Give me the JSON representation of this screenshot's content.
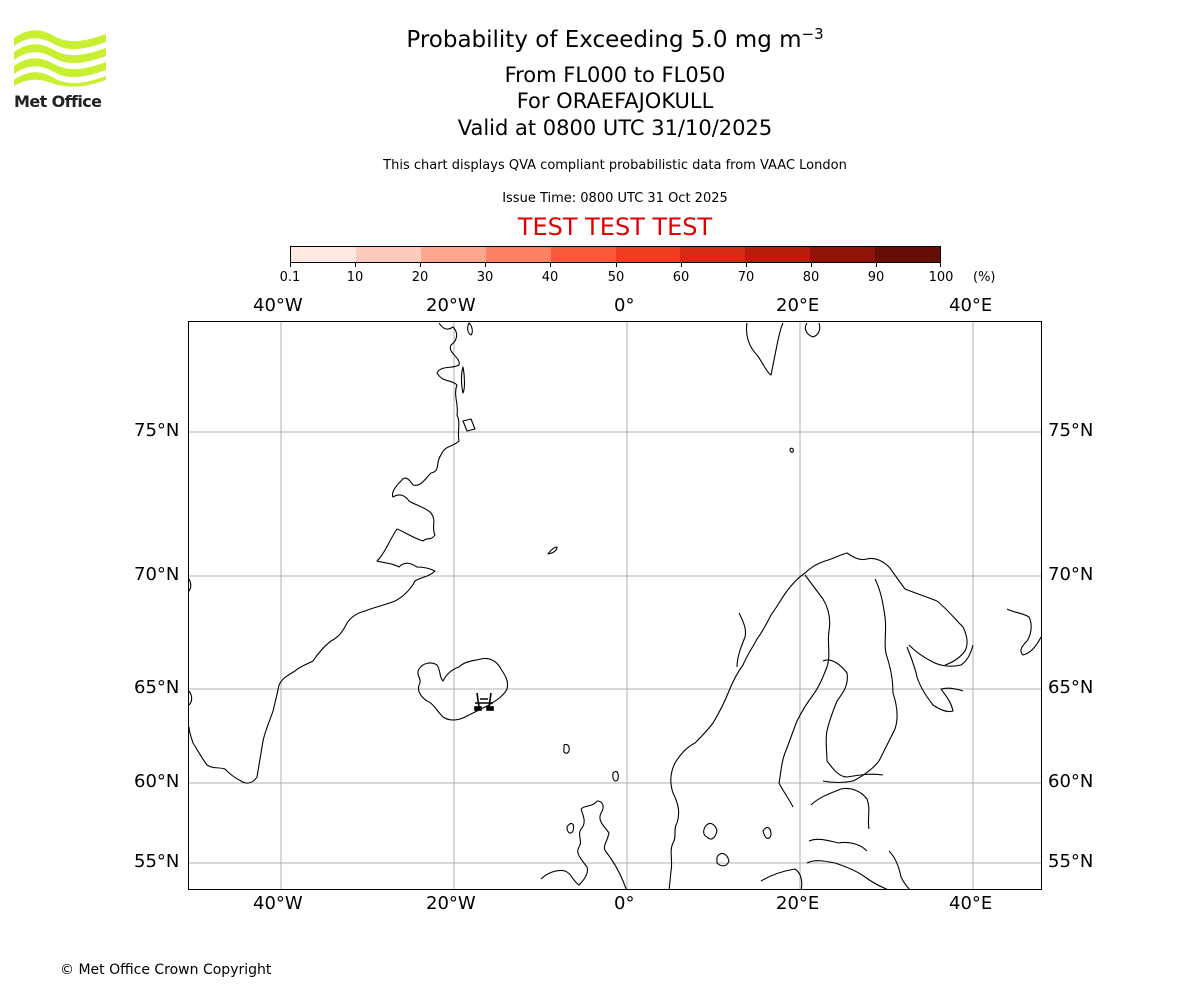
{
  "logo": {
    "text": "Met Office",
    "wave_color": "#c8f032"
  },
  "header": {
    "title_prefix": "Probability of Exceeding 5.0 mg m",
    "title_superscript": "−3",
    "level_range": "From FL000 to FL050",
    "volcano": "For ORAEFAJOKULL",
    "valid_time": "Valid at 0800 UTC 31/10/2025",
    "description": "This chart displays QVA compliant probabilistic data from VAAC London",
    "issue_time": "Issue Time: 0800 UTC 31 Oct 2025",
    "test_banner": "TEST TEST TEST",
    "test_banner_color": "#e00000"
  },
  "colorbar": {
    "unit": "(%)",
    "ticks": [
      "0.1",
      "10",
      "20",
      "30",
      "40",
      "50",
      "60",
      "70",
      "80",
      "90",
      "100"
    ],
    "colors": [
      "#fee8e1",
      "#fdcbbd",
      "#fca690",
      "#fc8165",
      "#fb5b3b",
      "#f03d22",
      "#d52b14",
      "#b81d0c",
      "#901309",
      "#650e05"
    ]
  },
  "map": {
    "lon_labels": [
      "40°W",
      "20°W",
      "0°",
      "20°E",
      "40°E"
    ],
    "lat_labels": [
      "75°N",
      "70°N",
      "65°N",
      "60°N",
      "55°N"
    ],
    "grid_color": "#b0b0b0",
    "volcano_marker": "ORAEFAJOKULL"
  },
  "chart_data": {
    "type": "map",
    "title": "Probability of Exceeding 5.0 mg m^-3",
    "subtitle": [
      "From FL000 to FL050",
      "For ORAEFAJOKULL",
      "Valid at 0800 UTC 31/10/2025"
    ],
    "projection": "PlateCarree-like (North Atlantic / Scandinavia)",
    "xlim": [
      "~50°W",
      "~48°E"
    ],
    "ylim": [
      "~53.5°N",
      "~79°N"
    ],
    "x_ticks": [
      "40°W",
      "20°W",
      "0°",
      "20°E",
      "40°E"
    ],
    "y_ticks": [
      "75°N",
      "70°N",
      "65°N",
      "60°N",
      "55°N"
    ],
    "grid": true,
    "legend": {
      "type": "colorbar",
      "bounds": [
        0.1,
        10,
        20,
        30,
        40,
        50,
        60,
        70,
        80,
        90,
        100
      ],
      "unit": "%"
    },
    "probability_fields_shown": [],
    "annotations": [
      "Volcano symbol at Öræfajökull, SE Iceland",
      "TEST TEST TEST"
    ]
  },
  "footer": {
    "copyright": "© Met Office Crown Copyright"
  }
}
